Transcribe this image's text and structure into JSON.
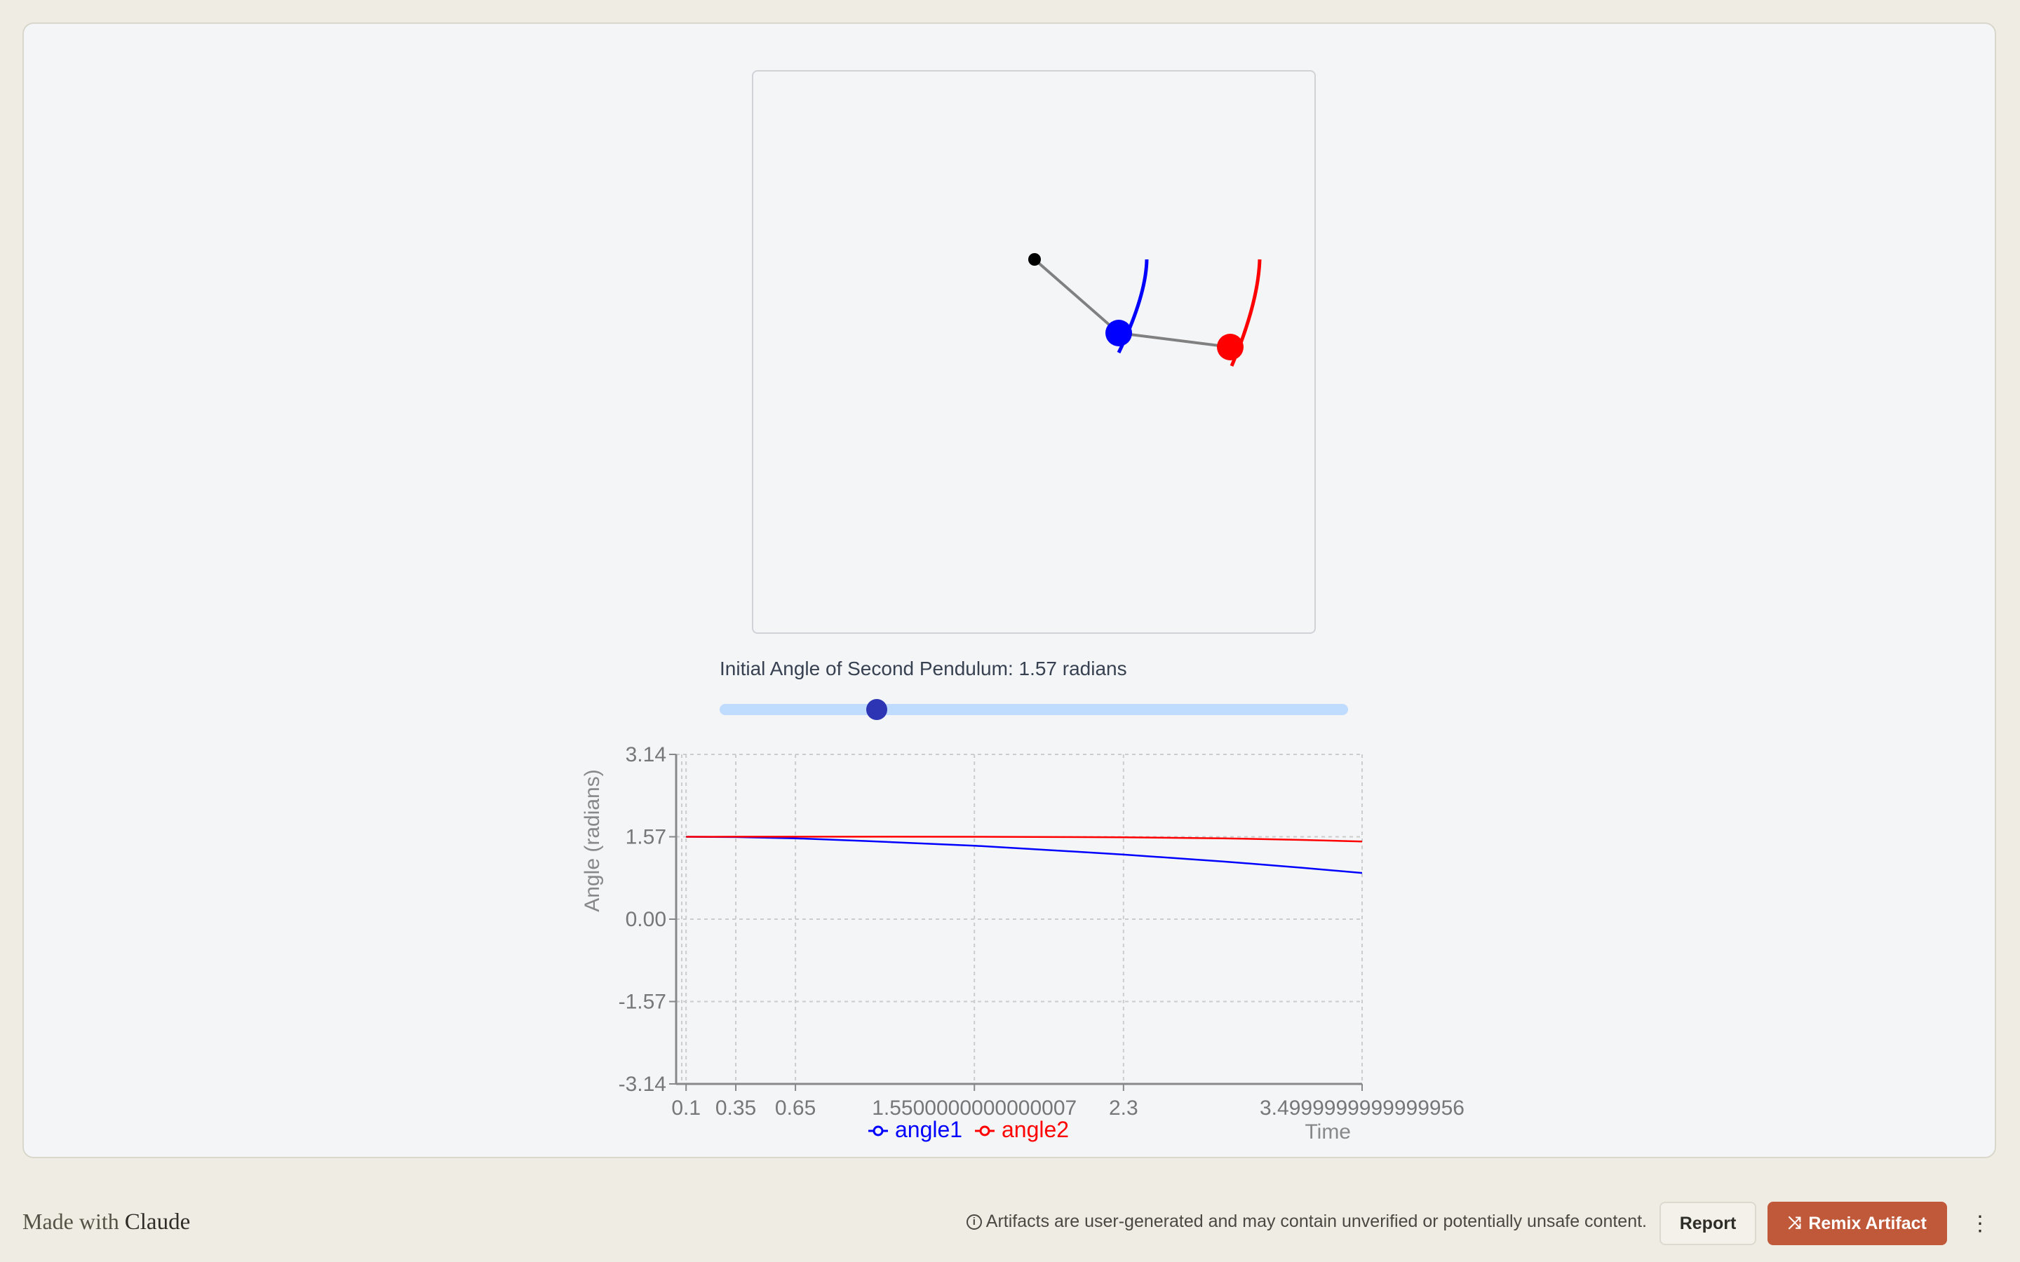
{
  "simulation": {
    "pivot_color": "#000000",
    "bob1_color": "#0000ff",
    "bob2_color": "#ff0000",
    "rod_color": "#808080"
  },
  "controls": {
    "angle_label": "Initial Angle of Second Pendulum: 1.57 radians",
    "angle_value": 1.57,
    "angle_min": 0,
    "angle_max": 6.28,
    "track_color": "#bfdbfe",
    "thumb_color": "#2d35b5"
  },
  "chart_data": {
    "type": "line",
    "xlabel": "Time",
    "ylabel": "Angle (radians)",
    "x_ticks": [
      "0.1",
      "0.35",
      "0.65",
      "1.5500000000000007",
      "2.3",
      "3.4999999999999956"
    ],
    "y_ticks": [
      "3.14",
      "1.57",
      "0.00",
      "-1.57",
      "-3.14"
    ],
    "ylim": [
      -3.14,
      3.14
    ],
    "xlim": [
      0.05,
      3.5
    ],
    "grid": true,
    "legend_position": "bottom",
    "x": [
      0.1,
      0.35,
      0.65,
      1.0,
      1.55,
      2.0,
      2.3,
      2.8,
      3.2,
      3.5
    ],
    "series": [
      {
        "name": "angle1",
        "color": "#0000ff",
        "values": [
          1.57,
          1.565,
          1.54,
          1.49,
          1.4,
          1.3,
          1.23,
          1.1,
          0.98,
          0.88
        ]
      },
      {
        "name": "angle2",
        "color": "#ff0000",
        "values": [
          1.57,
          1.571,
          1.572,
          1.572,
          1.57,
          1.565,
          1.56,
          1.54,
          1.51,
          1.48
        ]
      }
    ]
  },
  "footer": {
    "made_with": "Made with",
    "brand": "Claude",
    "disclaimer": "Artifacts are user-generated and may contain unverified or potentially unsafe content.",
    "report_label": "Report",
    "remix_label": "Remix Artifact",
    "more_label": "⋮",
    "remix_color": "#c0593a"
  }
}
